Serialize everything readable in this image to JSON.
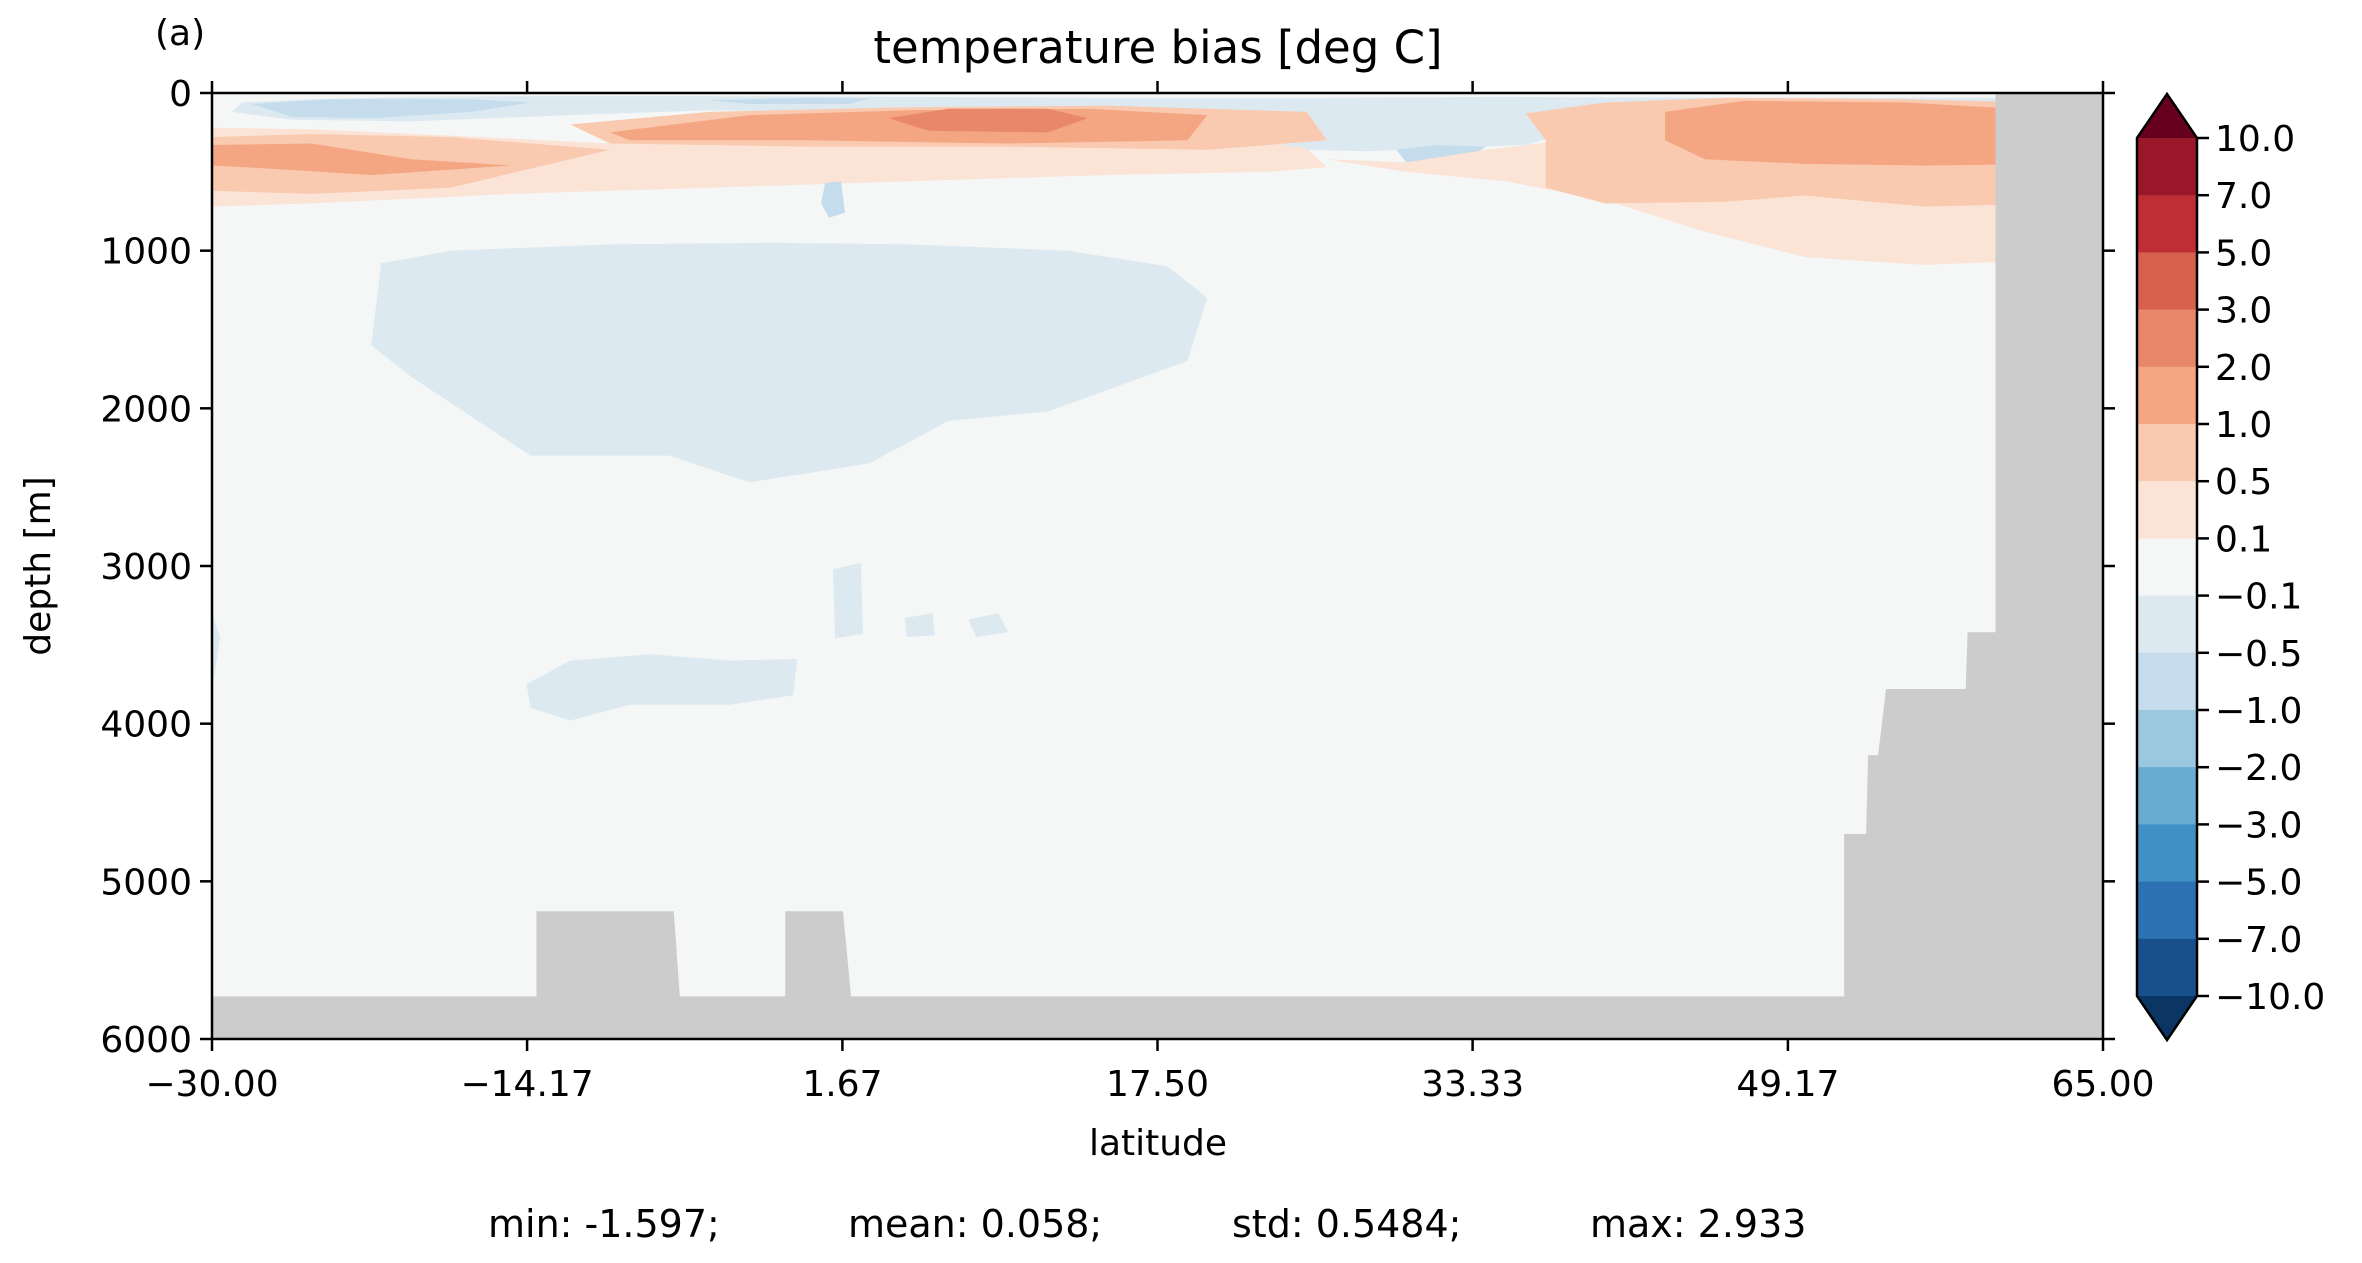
{
  "chart_data": {
    "type": "contourf",
    "panel_label": "(a)",
    "title": "temperature bias [deg C]",
    "xlabel": "latitude",
    "ylabel": "depth [m]",
    "xlim": [
      -30.0,
      65.0
    ],
    "ylim": [
      6000,
      0
    ],
    "y_inverted": true,
    "x_ticks": [
      "−30.00",
      "−14.17",
      "1.67",
      "17.50",
      "33.33",
      "49.17",
      "65.00"
    ],
    "x_tick_values": [
      -30.0,
      -14.17,
      1.67,
      17.5,
      33.33,
      49.17,
      65.0
    ],
    "y_ticks": [
      "0",
      "1000",
      "2000",
      "3000",
      "4000",
      "5000",
      "6000"
    ],
    "y_tick_values": [
      0,
      1000,
      2000,
      3000,
      4000,
      5000,
      6000
    ],
    "colorbar": {
      "extend": "both",
      "levels": [
        -10,
        -7,
        -5,
        -3,
        -2,
        -1,
        -0.5,
        -0.1,
        0.1,
        0.5,
        1,
        2,
        3,
        5,
        7,
        10
      ],
      "tick_labels": [
        "10.0",
        "7.0",
        "5.0",
        "3.0",
        "2.0",
        "1.0",
        "0.5",
        "0.1",
        "−0.1",
        "−0.5",
        "−1.0",
        "−2.0",
        "−3.0",
        "−5.0",
        "−7.0",
        "−10.0"
      ],
      "colors_top_to_bottom": [
        "#67001f",
        "#9a1629",
        "#bf2d35",
        "#d6604d",
        "#e8876a",
        "#f4a582",
        "#f9c9b0",
        "#fbe3d6",
        "#f5f6f6",
        "#dde9f1",
        "#c4dcec",
        "#9ac8e0",
        "#6aabd1",
        "#4090c5",
        "#2c72b2",
        "#18508c",
        "#0b3562"
      ]
    },
    "land_color": "#cccccc",
    "regions": [
      {
        "level": "-0.5 to -0.1",
        "color": "#dde9f1",
        "points": [
          [
            -28.5,
            60
          ],
          [
            -25,
            40
          ],
          [
            -20,
            25
          ],
          [
            -15,
            20
          ],
          [
            -5,
            20
          ],
          [
            5,
            25
          ],
          [
            15,
            30
          ],
          [
            25,
            30
          ],
          [
            35,
            25
          ],
          [
            45,
            30
          ],
          [
            52,
            30
          ],
          [
            63,
            30
          ],
          [
            63,
            90
          ],
          [
            55,
            70
          ],
          [
            48,
            80
          ],
          [
            38,
            50
          ],
          [
            28,
            90
          ],
          [
            20,
            160
          ],
          [
            10,
            180
          ],
          [
            2,
            120
          ],
          [
            -5,
            110
          ],
          [
            -12,
            140
          ],
          [
            -20,
            180
          ],
          [
            -26,
            170
          ],
          [
            -29,
            120
          ]
        ]
      },
      {
        "level": "-1.0 to -0.5",
        "color": "#c4dcec",
        "points": [
          [
            -28,
            70
          ],
          [
            -24,
            40
          ],
          [
            -17,
            40
          ],
          [
            -14,
            60
          ],
          [
            -17,
            120
          ],
          [
            -22,
            160
          ],
          [
            -26,
            150
          ]
        ]
      },
      {
        "level": "-1.0 to -0.5",
        "color": "#c4dcec",
        "points": [
          [
            -5,
            45
          ],
          [
            0,
            30
          ],
          [
            3,
            35
          ],
          [
            2,
            70
          ],
          [
            -3,
            70
          ]
        ]
      },
      {
        "level": "-0.5 to -0.1",
        "color": "#dde9f1",
        "points": [
          [
            22,
            90
          ],
          [
            25,
            60
          ],
          [
            32,
            50
          ],
          [
            42,
            55
          ],
          [
            44,
            90
          ],
          [
            41,
            140
          ],
          [
            36,
            330
          ],
          [
            28,
            370
          ],
          [
            21,
            350
          ],
          [
            19,
            220
          ]
        ]
      },
      {
        "level": "-1.0 to -0.5",
        "color": "#c4dcec",
        "points": [
          [
            29.5,
            360
          ],
          [
            31.5,
            330
          ],
          [
            34,
            340
          ],
          [
            33,
            430
          ],
          [
            30,
            440
          ]
        ]
      },
      {
        "level": "0.1 to 0.5",
        "color": "#fbe3d6",
        "points": [
          [
            -30,
            220
          ],
          [
            -25,
            230
          ],
          [
            -18,
            270
          ],
          [
            -10,
            320
          ],
          [
            0,
            270
          ],
          [
            10,
            240
          ],
          [
            20,
            260
          ],
          [
            25,
            350
          ],
          [
            26,
            470
          ],
          [
            23,
            500
          ],
          [
            15,
            520
          ],
          [
            5,
            560
          ],
          [
            -5,
            600
          ],
          [
            -15,
            640
          ],
          [
            -25,
            700
          ],
          [
            -30,
            720
          ]
        ]
      },
      {
        "level": "0.5 to 1.0",
        "color": "#f9c9b0",
        "points": [
          [
            -30,
            280
          ],
          [
            -25,
            260
          ],
          [
            -18,
            280
          ],
          [
            -10,
            360
          ],
          [
            -18,
            600
          ],
          [
            -25,
            640
          ],
          [
            -30,
            620
          ]
        ]
      },
      {
        "level": "1.0 to 2.0",
        "color": "#f4a582",
        "points": [
          [
            -30,
            330
          ],
          [
            -25,
            320
          ],
          [
            -20,
            420
          ],
          [
            -15,
            460
          ],
          [
            -22,
            520
          ],
          [
            -27,
            480
          ],
          [
            -30,
            460
          ]
        ]
      },
      {
        "level": "0.5 to 1.0",
        "color": "#f9c9b0",
        "points": [
          [
            -12,
            200
          ],
          [
            -5,
            120
          ],
          [
            5,
            90
          ],
          [
            15,
            80
          ],
          [
            25,
            120
          ],
          [
            26,
            300
          ],
          [
            20,
            360
          ],
          [
            10,
            340
          ],
          [
            0,
            340
          ],
          [
            -10,
            320
          ]
        ]
      },
      {
        "level": "1.0 to 2.0",
        "color": "#f4a582",
        "points": [
          [
            -10,
            250
          ],
          [
            -3,
            140
          ],
          [
            5,
            110
          ],
          [
            14,
            100
          ],
          [
            20,
            140
          ],
          [
            19,
            300
          ],
          [
            10,
            320
          ],
          [
            0,
            300
          ],
          [
            -9,
            300
          ]
        ]
      },
      {
        "level": "2.0 to 3.0",
        "color": "#e8876a",
        "points": [
          [
            4,
            160
          ],
          [
            7,
            100
          ],
          [
            12,
            100
          ],
          [
            14,
            160
          ],
          [
            12,
            250
          ],
          [
            6,
            240
          ]
        ]
      },
      {
        "level": "0.1 to 0.5",
        "color": "#fbe3d6",
        "points": [
          [
            26,
            420
          ],
          [
            30,
            500
          ],
          [
            35,
            560
          ],
          [
            40,
            680
          ],
          [
            45,
            880
          ],
          [
            50,
            1040
          ],
          [
            56,
            1090
          ],
          [
            60,
            1070
          ],
          [
            62.6,
            1340
          ],
          [
            63,
            900
          ],
          [
            63,
            90
          ],
          [
            58,
            50
          ],
          [
            50,
            30
          ],
          [
            45,
            50
          ],
          [
            40,
            120
          ],
          [
            38,
            300
          ],
          [
            34,
            360
          ],
          [
            30,
            440
          ]
        ]
      },
      {
        "level": "0.5 to 1.0",
        "color": "#f9c9b0",
        "points": [
          [
            36,
            130
          ],
          [
            40,
            60
          ],
          [
            46,
            30
          ],
          [
            55,
            40
          ],
          [
            62,
            60
          ],
          [
            63,
            150
          ],
          [
            63,
            700
          ],
          [
            56,
            720
          ],
          [
            50,
            650
          ],
          [
            46,
            690
          ],
          [
            40,
            700
          ],
          [
            37,
            600
          ],
          [
            37,
            300
          ]
        ]
      },
      {
        "level": "1.0 to 2.0",
        "color": "#f4a582",
        "points": [
          [
            43,
            120
          ],
          [
            47,
            50
          ],
          [
            55,
            60
          ],
          [
            62,
            110
          ],
          [
            63,
            300
          ],
          [
            63,
            450
          ],
          [
            56,
            460
          ],
          [
            50,
            450
          ],
          [
            45,
            420
          ],
          [
            43,
            300
          ]
        ]
      },
      {
        "level": "-0.5 to -0.1",
        "color": "#dde9f1",
        "points": [
          [
            -21.5,
            1080
          ],
          [
            -18,
            1000
          ],
          [
            -10,
            960
          ],
          [
            -2,
            950
          ],
          [
            5,
            960
          ],
          [
            13,
            1000
          ],
          [
            18,
            1100
          ],
          [
            20,
            1300
          ],
          [
            19,
            1700
          ],
          [
            12,
            2020
          ],
          [
            7,
            2080
          ],
          [
            3,
            2350
          ],
          [
            -3,
            2470
          ],
          [
            -7,
            2300
          ],
          [
            -14,
            2300
          ],
          [
            -20,
            1800
          ],
          [
            -22,
            1600
          ]
        ]
      },
      {
        "level": "-1.0 to -0.5",
        "color": "#c4dcec",
        "points": [
          [
            0.8,
            570
          ],
          [
            1.6,
            560
          ],
          [
            1.8,
            760
          ],
          [
            1.0,
            790
          ],
          [
            0.6,
            700
          ]
        ]
      },
      {
        "level": "-0.5 to -0.1",
        "color": "#dde9f1",
        "points": [
          [
            1.2,
            3020
          ],
          [
            2.6,
            2980
          ],
          [
            2.7,
            3430
          ],
          [
            1.3,
            3460
          ]
        ]
      },
      {
        "level": "-0.5 to -0.1",
        "color": "#dde9f1",
        "points": [
          [
            4.8,
            3330
          ],
          [
            6.2,
            3300
          ],
          [
            6.3,
            3440
          ],
          [
            4.9,
            3450
          ]
        ]
      },
      {
        "level": "-0.5 to -0.1",
        "color": "#dde9f1",
        "points": [
          [
            8.0,
            3340
          ],
          [
            9.5,
            3300
          ],
          [
            10.0,
            3420
          ],
          [
            8.4,
            3450
          ]
        ]
      },
      {
        "level": "-0.5 to -0.1",
        "color": "#dde9f1",
        "points": [
          [
            -14.2,
            3750
          ],
          [
            -12,
            3600
          ],
          [
            -8,
            3560
          ],
          [
            -4,
            3600
          ],
          [
            -0.6,
            3590
          ],
          [
            -0.8,
            3820
          ],
          [
            -4,
            3880
          ],
          [
            -9,
            3880
          ],
          [
            -12,
            3980
          ],
          [
            -14,
            3900
          ]
        ]
      },
      {
        "level": "-0.5 to -0.1",
        "color": "#dde9f1",
        "points": [
          [
            2.2,
            2090
          ],
          [
            3.7,
            2040
          ],
          [
            4,
            2280
          ],
          [
            2.5,
            2300
          ]
        ]
      },
      {
        "level": "-0.5 to -0.1",
        "color": "#dde9f1",
        "points": [
          [
            -30,
            3300
          ],
          [
            -29.6,
            3450
          ],
          [
            -30,
            3800
          ]
        ]
      }
    ],
    "land": [
      [
        [
          -30,
          5730
        ],
        [
          -13.7,
          5730
        ],
        [
          -13.7,
          5190
        ],
        [
          -6.8,
          5190
        ],
        [
          -6.5,
          5730
        ],
        [
          -1.2,
          5730
        ],
        [
          -1.2,
          5190
        ],
        [
          1.7,
          5190
        ],
        [
          2.1,
          5730
        ],
        [
          52,
          5730
        ],
        [
          52,
          4700
        ],
        [
          53.1,
          4700
        ],
        [
          53.2,
          4200
        ],
        [
          53.7,
          4200
        ],
        [
          54.1,
          3780
        ],
        [
          58.1,
          3780
        ],
        [
          58.2,
          3420
        ],
        [
          59.6,
          3420
        ],
        [
          59.6,
          0
        ],
        [
          65,
          0
        ],
        [
          65,
          6000
        ],
        [
          -30,
          6000
        ]
      ]
    ],
    "stats": [
      {
        "label": "min:",
        "value": "-1.597;"
      },
      {
        "label": "mean:",
        "value": "0.058;"
      },
      {
        "label": "std:",
        "value": "0.5484;"
      },
      {
        "label": "max:",
        "value": "2.933"
      }
    ]
  }
}
